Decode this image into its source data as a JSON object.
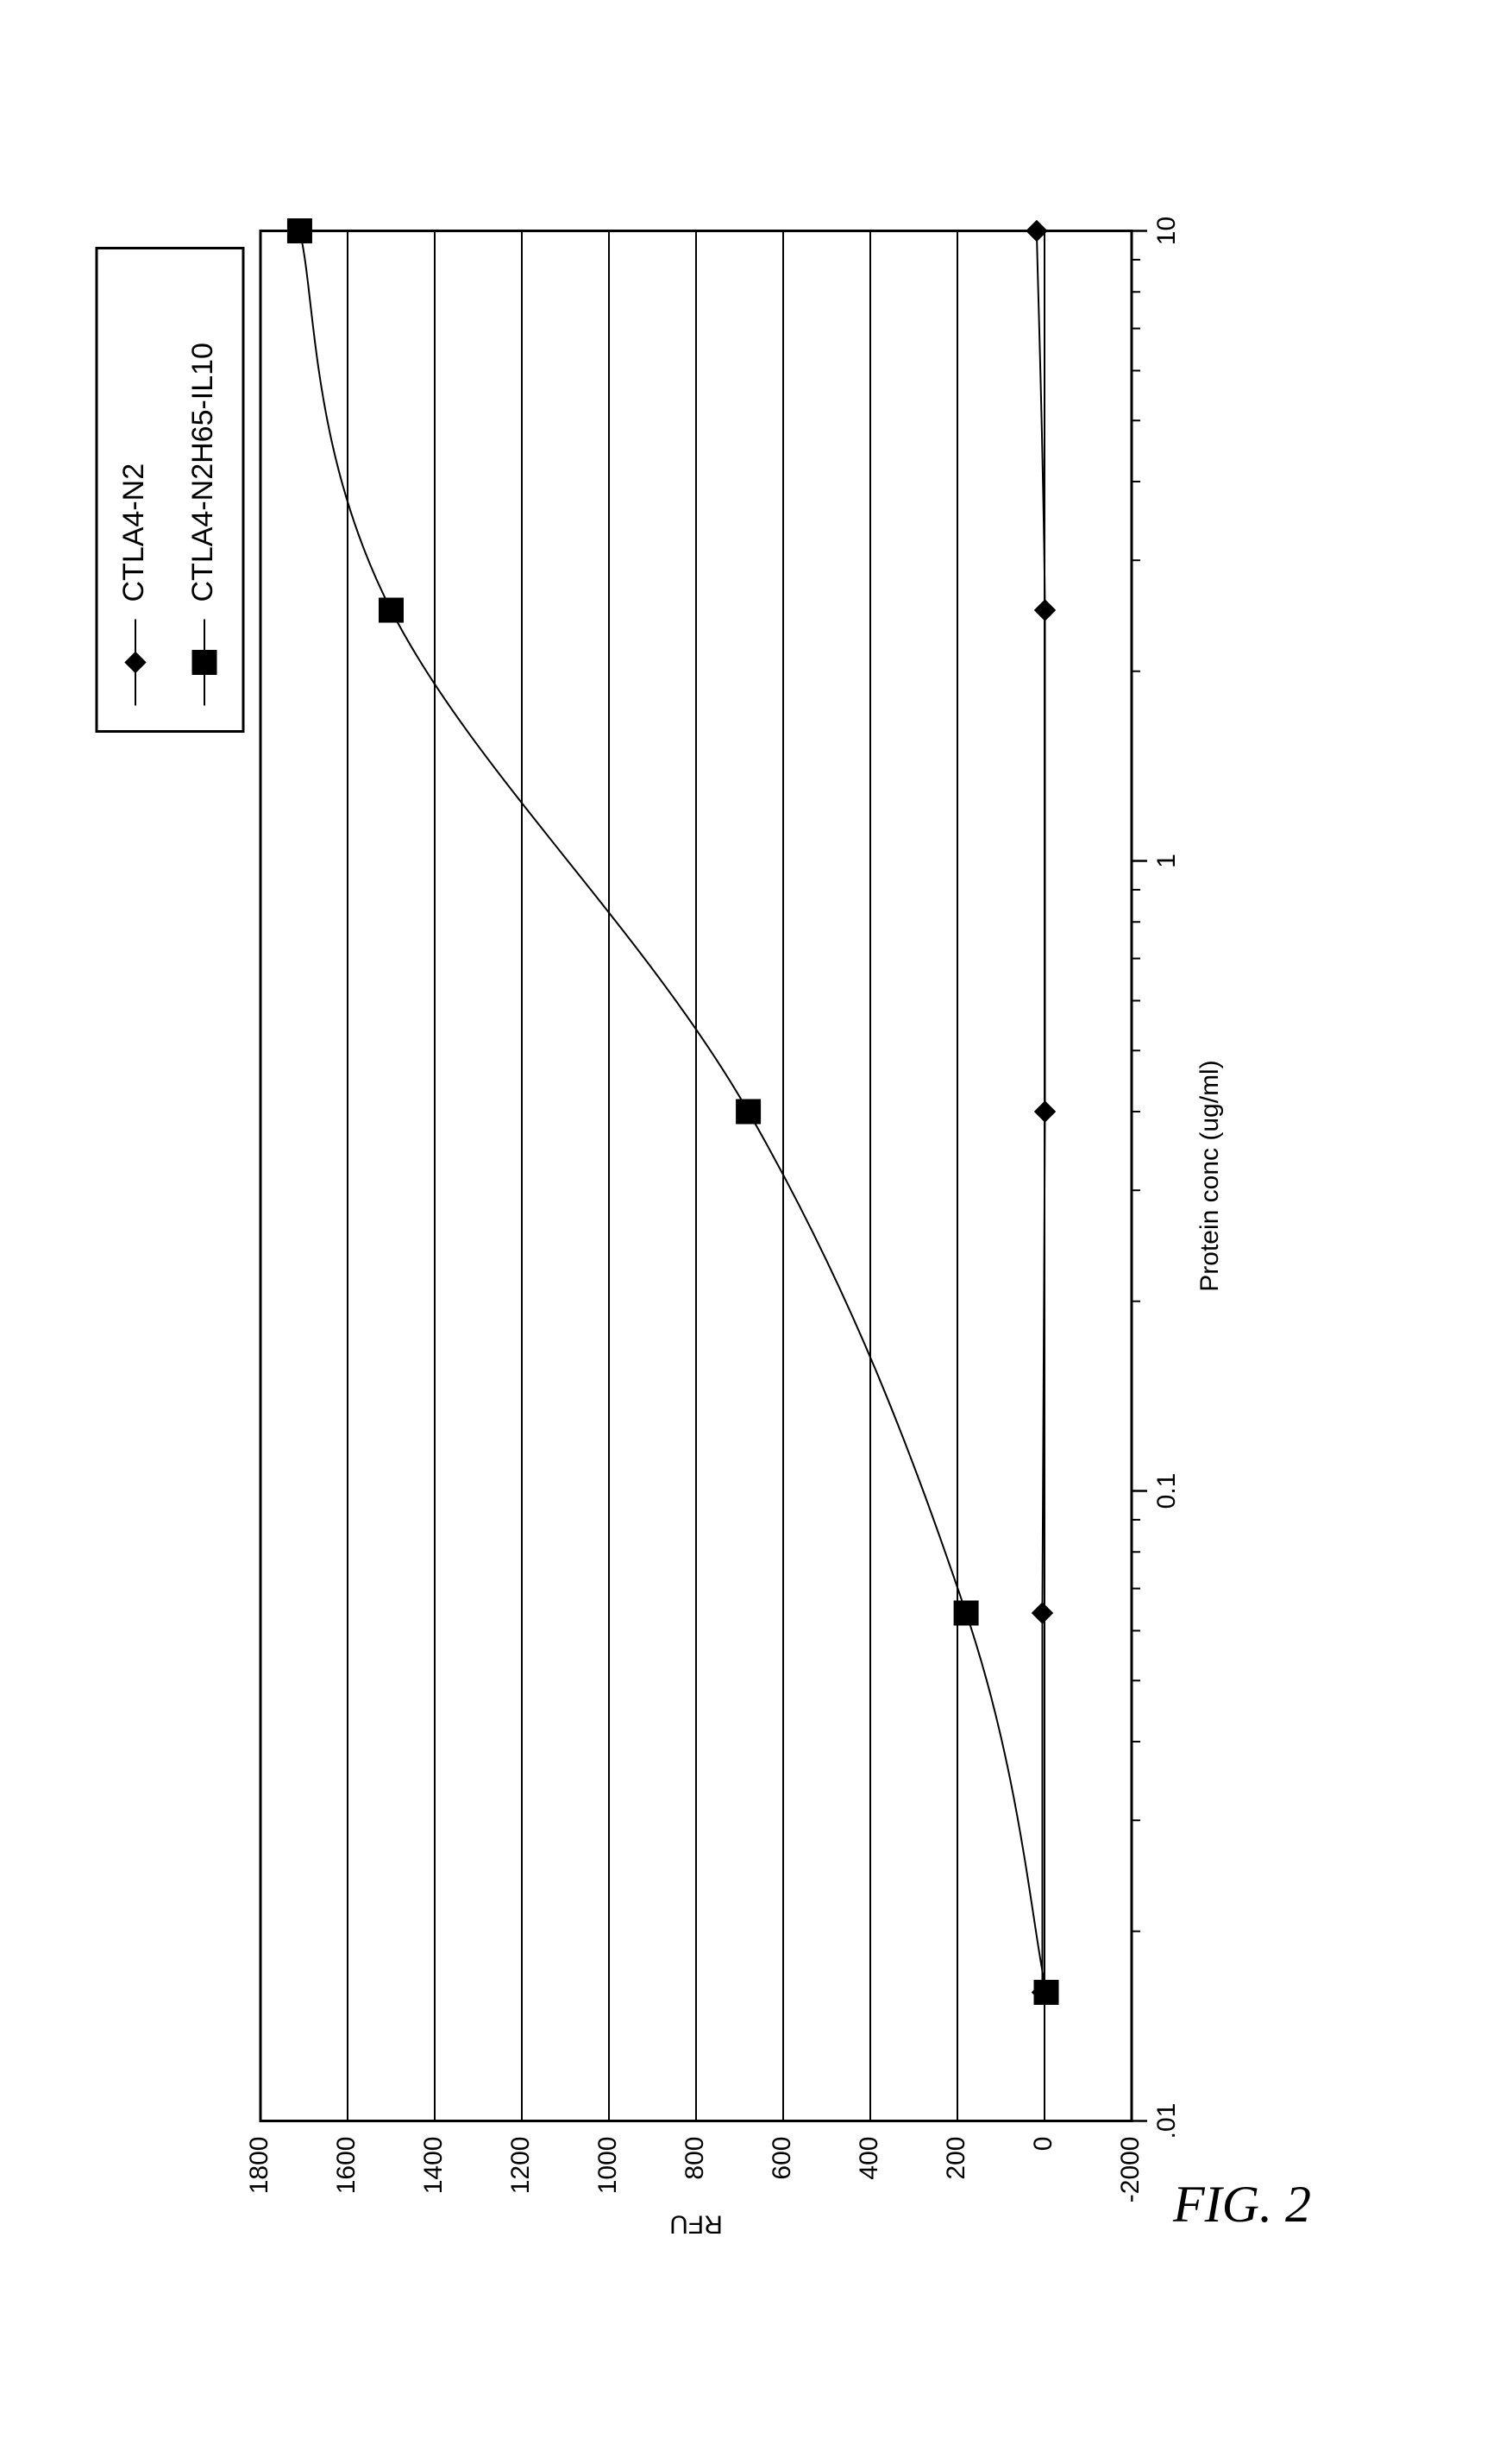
{
  "figure_label": "FIG. 2",
  "chart": {
    "type": "line",
    "rotated_ccw_90": true,
    "background_color": "#ffffff",
    "plot_border_color": "#000000",
    "grid_color": "#000000",
    "grid_line_width": 2,
    "axis_line_width": 3,
    "x": {
      "label": "Protein conc (ug/ml)",
      "scale": "log",
      "min": 0.01,
      "max": 10,
      "ticks": [
        0.01,
        0.1,
        1,
        10
      ],
      "tick_labels": [
        ".01",
        "0.1",
        "1",
        "10"
      ],
      "label_fontsize": 30,
      "tick_fontsize": 30
    },
    "y": {
      "label": "RFU",
      "scale": "linear",
      "min": -2000,
      "max": 1800,
      "ticks": [
        -2000,
        0,
        200,
        400,
        600,
        800,
        1000,
        1200,
        1400,
        1600,
        1800
      ],
      "tick_labels": [
        "-2000",
        "0",
        "200",
        "400",
        "600",
        "800",
        "1000",
        "1200",
        "1400",
        "1600",
        "1800"
      ],
      "label_fontsize": 30,
      "tick_fontsize": 30,
      "label_extra": "-2000"
    },
    "series": [
      {
        "name": "CTLA4-N2",
        "marker": "diamond",
        "marker_size": 18,
        "line_color": "#000000",
        "marker_fill": "#000000",
        "line_width": 2,
        "data": [
          {
            "x": 0.016,
            "y": 5
          },
          {
            "x": 0.064,
            "y": 5
          },
          {
            "x": 0.4,
            "y": -10
          },
          {
            "x": 2.5,
            "y": -10
          },
          {
            "x": 10,
            "y": 18
          }
        ]
      },
      {
        "name": "CTLA4-N2H65-IL10",
        "marker": "square",
        "marker_size": 20,
        "line_color": "#000000",
        "marker_fill": "#000000",
        "line_width": 2,
        "data": [
          {
            "x": 0.016,
            "y": -40
          },
          {
            "x": 0.064,
            "y": 180
          },
          {
            "x": 0.4,
            "y": 680
          },
          {
            "x": 2.5,
            "y": 1500
          },
          {
            "x": 10,
            "y": 1710
          }
        ]
      }
    ],
    "legend": {
      "border_color": "#000000",
      "border_width": 3,
      "background": "#ffffff",
      "fontsize": 34,
      "entries": [
        {
          "label": "CTLA4-N2",
          "marker": "diamond"
        },
        {
          "label": "CTLA4-N2H65-IL10",
          "marker": "square"
        }
      ]
    }
  }
}
